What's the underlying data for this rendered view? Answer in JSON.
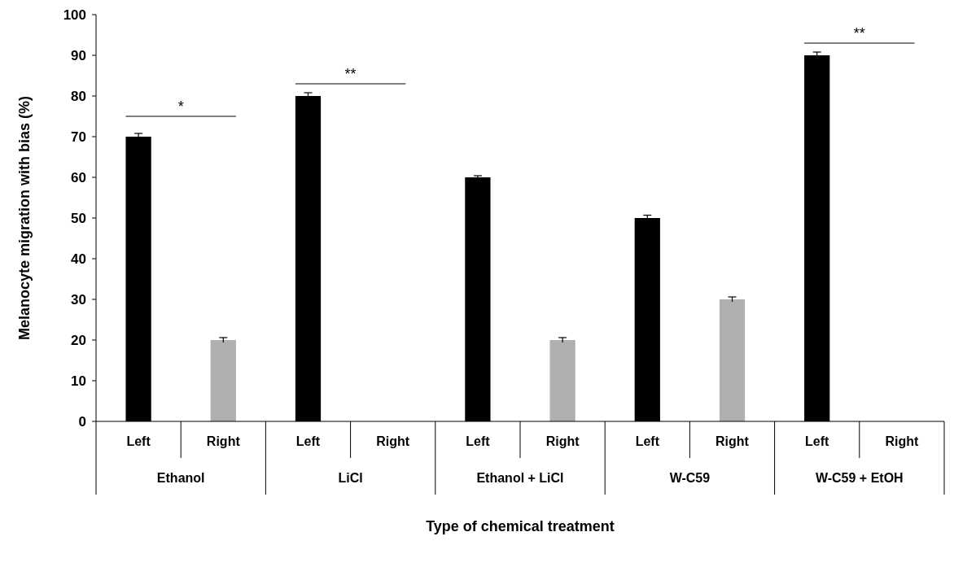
{
  "chart_data": {
    "type": "bar",
    "xlabel": "Type of chemical treatment",
    "ylabel": "Melanocyte migration with bias (%)",
    "categories": [
      "Left",
      "Right",
      "Left",
      "Right",
      "Left",
      "Right",
      "Left",
      "Right",
      "Left",
      "Right"
    ],
    "values": [
      70,
      20,
      80,
      0,
      60,
      20,
      50,
      30,
      90,
      0
    ],
    "errors": [
      0.8,
      0.6,
      0.8,
      null,
      0.4,
      0.6,
      0.7,
      0.6,
      0.8,
      null
    ],
    "colors": [
      "#000000",
      "#b0b0b0",
      "#000000",
      "#b0b0b0",
      "#000000",
      "#b0b0b0",
      "#000000",
      "#b0b0b0",
      "#000000",
      "#b0b0b0"
    ],
    "ylim": [
      0,
      100
    ],
    "yticks": [
      0,
      10,
      20,
      30,
      40,
      50,
      60,
      70,
      80,
      90,
      100
    ],
    "grid": false,
    "annotations": [
      "Ethanol",
      "LiCl",
      "Ethanol + LiCl",
      "W-C59",
      "W-C59 + EtOH",
      "*",
      "**",
      "**"
    ]
  }
}
